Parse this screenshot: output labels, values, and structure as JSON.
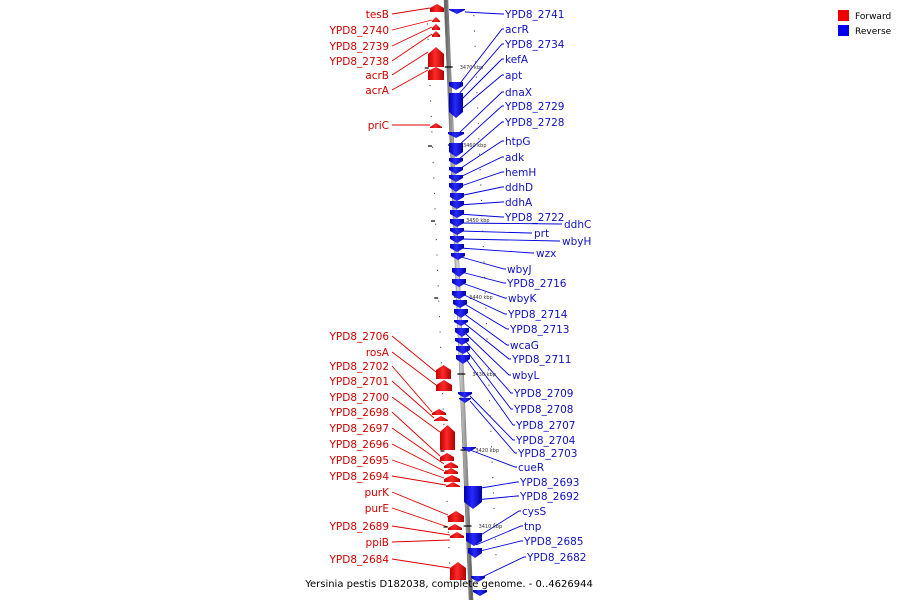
{
  "caption": "Yersinia pestis D182038, complete genome. - 0..4626944",
  "legend": {
    "forward": {
      "label": "Forward",
      "color": "#ee0000"
    },
    "reverse": {
      "label": "Reverse",
      "color": "#0000ee"
    }
  },
  "ticks": [
    "3470 kbp",
    "3460 kbp",
    "3450 kbp",
    "3440 kbp",
    "3430 kbp",
    "3420 kbp",
    "3410 kbp"
  ],
  "forward_genes": [
    "tesB",
    "YPD8_2740",
    "YPD8_2739",
    "YPD8_2738",
    "acrB",
    "acrA",
    "priC",
    "YPD8_2706",
    "rosA",
    "YPD8_2702",
    "YPD8_2701",
    "YPD8_2700",
    "YPD8_2698",
    "YPD8_2697",
    "YPD8_2696",
    "YPD8_2695",
    "YPD8_2694",
    "purK",
    "purE",
    "YPD8_2689",
    "ppiB",
    "YPD8_2684"
  ],
  "reverse_genes": [
    "YPD8_2741",
    "acrR",
    "YPD8_2734",
    "kefA",
    "apt",
    "dnaX",
    "YPD8_2729",
    "YPD8_2728",
    "htpG",
    "adk",
    "hemH",
    "ddhD",
    "ddhA",
    "YPD8_2722",
    "ddhC",
    "prt",
    "wbyH",
    "wzx",
    "wbyJ",
    "YPD8_2716",
    "wbyK",
    "YPD8_2714",
    "YPD8_2713",
    "wcaG",
    "YPD8_2711",
    "wbyL",
    "YPD8_2709",
    "YPD8_2708",
    "YPD8_2707",
    "YPD8_2704",
    "YPD8_2703",
    "cueR",
    "YPD8_2693",
    "YPD8_2692",
    "cysS",
    "tnp",
    "YPD8_2685",
    "YPD8_2682"
  ]
}
